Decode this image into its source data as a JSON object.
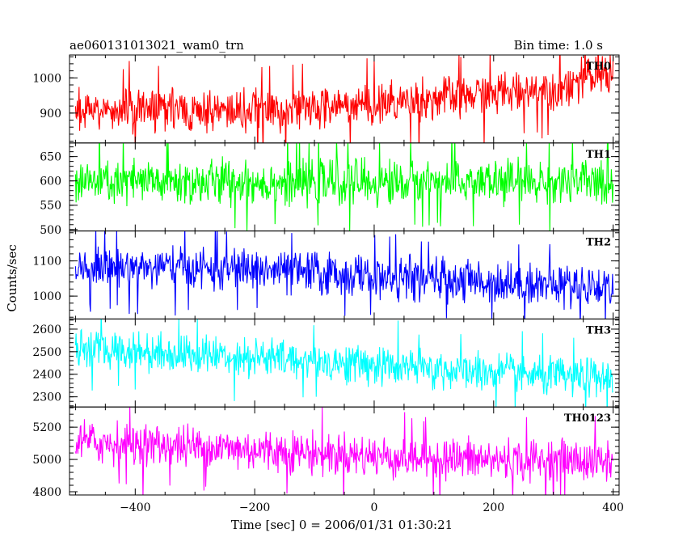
{
  "header": {
    "source_name": "ae060131013021_wam0_trn",
    "bin_time": "Bin time: 1.0 s"
  },
  "chart_data": {
    "type": "line",
    "xlabel": "Time [sec] 0 = 2006/01/31 01:30:21",
    "ylabel": "Counts/sec",
    "xlim": [
      -510,
      410
    ],
    "x_ticks": [
      -400,
      -200,
      0,
      200,
      400
    ],
    "x_tick_labels": [
      "−400",
      "−200",
      "0",
      "200",
      "400"
    ],
    "x_range": [
      -500,
      400
    ],
    "bin_time_s": 1.0,
    "grid": false,
    "panels": [
      {
        "name": "TH0",
        "color": "#ff0000",
        "ylim": [
          815,
          1065
        ],
        "y_ticks": [
          900,
          1000
        ],
        "y_tick_labels": [
          "900",
          "1000"
        ],
        "trend": [
          [
            -500,
            910
          ],
          [
            -200,
            905
          ],
          [
            0,
            925
          ],
          [
            200,
            955
          ],
          [
            300,
            970
          ],
          [
            400,
            1020
          ]
        ],
        "noise_sd": 32,
        "spike_sd": 1.6
      },
      {
        "name": "TH1",
        "color": "#00ff00",
        "ylim": [
          497,
          678
        ],
        "y_ticks": [
          500,
          550,
          600,
          650
        ],
        "y_tick_labels": [
          "500",
          "550",
          "600",
          "650"
        ],
        "trend": [
          [
            -500,
            597
          ],
          [
            400,
            597
          ]
        ],
        "noise_sd": 25,
        "spike_sd": 1.5
      },
      {
        "name": "TH2",
        "color": "#0000ff",
        "ylim": [
          935,
          1185
        ],
        "y_ticks": [
          1000,
          1100
        ],
        "y_tick_labels": [
          "1000",
          "1100"
        ],
        "trend": [
          [
            -500,
            1085
          ],
          [
            -200,
            1075
          ],
          [
            0,
            1055
          ],
          [
            200,
            1040
          ],
          [
            400,
            1025
          ]
        ],
        "noise_sd": 32,
        "spike_sd": 1.5
      },
      {
        "name": "TH3",
        "color": "#00ffff",
        "ylim": [
          2255,
          2645
        ],
        "y_ticks": [
          2300,
          2400,
          2500,
          2600
        ],
        "y_tick_labels": [
          "2300",
          "2400",
          "2500",
          "2600"
        ],
        "trend": [
          [
            -500,
            2515
          ],
          [
            -200,
            2475
          ],
          [
            0,
            2440
          ],
          [
            200,
            2405
          ],
          [
            400,
            2375
          ]
        ],
        "noise_sd": 45,
        "spike_sd": 1.5
      },
      {
        "name": "TH0123",
        "color": "#ff00ff",
        "ylim": [
          4780,
          5325
        ],
        "y_ticks": [
          4800,
          5000,
          5200
        ],
        "y_tick_labels": [
          "4800",
          "5000",
          "5200"
        ],
        "trend": [
          [
            -500,
            5110
          ],
          [
            -200,
            5060
          ],
          [
            0,
            5020
          ],
          [
            200,
            4995
          ],
          [
            400,
            4990
          ]
        ],
        "noise_sd": 68,
        "spike_sd": 1.5
      }
    ]
  }
}
